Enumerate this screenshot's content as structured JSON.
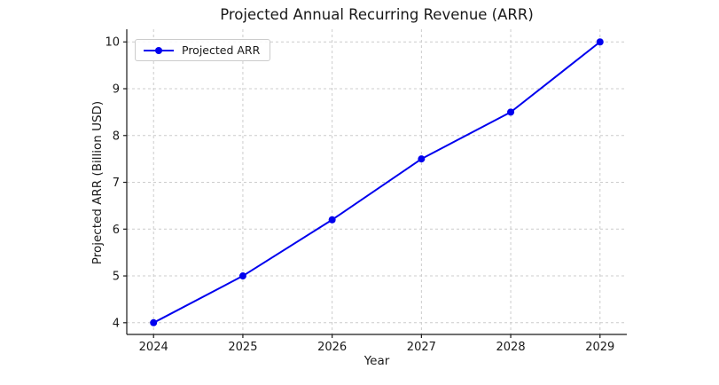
{
  "chart_data": {
    "type": "line",
    "title": "Projected Annual Recurring Revenue (ARR)",
    "xlabel": "Year",
    "ylabel": "Projected ARR (Billion USD)",
    "x": [
      2024,
      2025,
      2026,
      2027,
      2028,
      2029
    ],
    "series": [
      {
        "name": "Projected ARR",
        "values": [
          4.0,
          5.0,
          6.2,
          7.5,
          8.5,
          10.0
        ],
        "color": "#0000ee",
        "marker": "circle",
        "line_width": 2
      }
    ],
    "x_ticks": [
      "2024",
      "2025",
      "2026",
      "2027",
      "2028",
      "2029"
    ],
    "y_ticks": [
      "4",
      "5",
      "6",
      "7",
      "8",
      "9",
      "10"
    ],
    "xlim": [
      2023.7,
      2029.3
    ],
    "ylim": [
      3.75,
      10.27
    ],
    "grid": true,
    "grid_style": "dashed",
    "legend": {
      "position": "upper left",
      "entries": [
        "Projected ARR"
      ]
    },
    "colors": {
      "line": "#0000ee",
      "grid": "#cccccc",
      "text": "#1a1a1a",
      "spine": "#1a1a1a",
      "background": "#ffffff"
    }
  }
}
